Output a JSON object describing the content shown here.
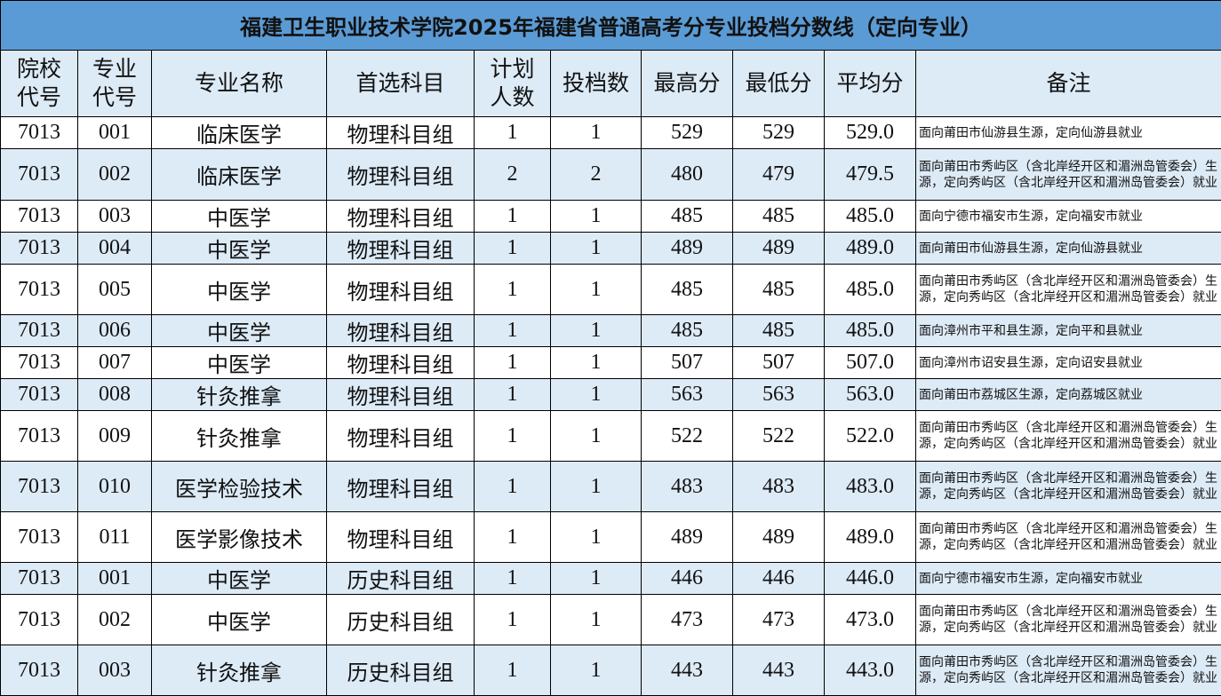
{
  "title": "福建卫生职业技术学院2025年福建省普通高考分专业投档分数线（定向专业）",
  "headers": [
    "院校代号",
    "专业代号",
    "专业名称",
    "首选科目",
    "计划人数",
    "投档数",
    "最高分",
    "最低分",
    "平均分",
    "备注"
  ],
  "colors": {
    "title_bg": "#5b9bd5",
    "stripe": "#ddebf7"
  },
  "rows": [
    [
      "7013",
      "001",
      "临床医学",
      "物理科目组",
      "1",
      "1",
      "529",
      "529",
      "529.0",
      "面向莆田市仙游县生源，定向仙游县就业"
    ],
    [
      "7013",
      "002",
      "临床医学",
      "物理科目组",
      "2",
      "2",
      "480",
      "479",
      "479.5",
      "面向莆田市秀屿区（含北岸经开区和湄洲岛管委会）生源，定向秀屿区（含北岸经开区和湄洲岛管委会）就业"
    ],
    [
      "7013",
      "003",
      "中医学",
      "物理科目组",
      "1",
      "1",
      "485",
      "485",
      "485.0",
      "面向宁德市福安市生源，定向福安市就业"
    ],
    [
      "7013",
      "004",
      "中医学",
      "物理科目组",
      "1",
      "1",
      "489",
      "489",
      "489.0",
      "面向莆田市仙游县生源，定向仙游县就业"
    ],
    [
      "7013",
      "005",
      "中医学",
      "物理科目组",
      "1",
      "1",
      "485",
      "485",
      "485.0",
      "面向莆田市秀屿区（含北岸经开区和湄洲岛管委会）生源，定向秀屿区（含北岸经开区和湄洲岛管委会）就业"
    ],
    [
      "7013",
      "006",
      "中医学",
      "物理科目组",
      "1",
      "1",
      "485",
      "485",
      "485.0",
      "面向漳州市平和县生源，定向平和县就业"
    ],
    [
      "7013",
      "007",
      "中医学",
      "物理科目组",
      "1",
      "1",
      "507",
      "507",
      "507.0",
      "面向漳州市诏安县生源，定向诏安县就业"
    ],
    [
      "7013",
      "008",
      "针灸推拿",
      "物理科目组",
      "1",
      "1",
      "563",
      "563",
      "563.0",
      "面向莆田市荔城区生源，定向荔城区就业"
    ],
    [
      "7013",
      "009",
      "针灸推拿",
      "物理科目组",
      "1",
      "1",
      "522",
      "522",
      "522.0",
      "面向莆田市秀屿区（含北岸经开区和湄洲岛管委会）生源，定向秀屿区（含北岸经开区和湄洲岛管委会）就业"
    ],
    [
      "7013",
      "010",
      "医学检验技术",
      "物理科目组",
      "1",
      "1",
      "483",
      "483",
      "483.0",
      "面向莆田市秀屿区（含北岸经开区和湄洲岛管委会）生源，定向秀屿区（含北岸经开区和湄洲岛管委会）就业"
    ],
    [
      "7013",
      "011",
      "医学影像技术",
      "物理科目组",
      "1",
      "1",
      "489",
      "489",
      "489.0",
      "面向莆田市秀屿区（含北岸经开区和湄洲岛管委会）生源，定向秀屿区（含北岸经开区和湄洲岛管委会）就业"
    ],
    [
      "7013",
      "001",
      "中医学",
      "历史科目组",
      "1",
      "1",
      "446",
      "446",
      "446.0",
      "面向宁德市福安市生源，定向福安市就业"
    ],
    [
      "7013",
      "002",
      "中医学",
      "历史科目组",
      "1",
      "1",
      "473",
      "473",
      "473.0",
      "面向莆田市秀屿区（含北岸经开区和湄洲岛管委会）生源，定向秀屿区（含北岸经开区和湄洲岛管委会）就业"
    ],
    [
      "7013",
      "003",
      "针灸推拿",
      "历史科目组",
      "1",
      "1",
      "443",
      "443",
      "443.0",
      "面向莆田市秀屿区（含北岸经开区和湄洲岛管委会）生源，定向秀屿区（含北岸经开区和湄洲岛管委会）就业"
    ]
  ]
}
